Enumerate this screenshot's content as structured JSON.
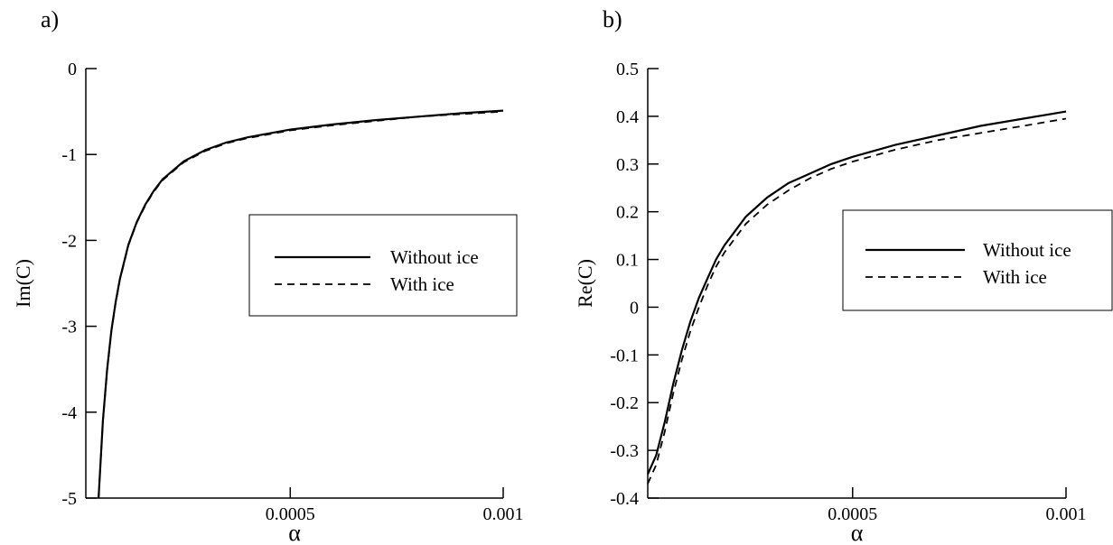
{
  "chart_data": [
    {
      "type": "line",
      "panel_label": "a)",
      "xlabel": "α",
      "ylabel": "Im(C)",
      "xlim": [
        2e-05,
        0.001
      ],
      "ylim": [
        -5,
        0
      ],
      "xticks": [
        0.0005,
        0.001
      ],
      "xtick_labels": [
        "0.0005",
        "0.001"
      ],
      "yticks": [
        0,
        -1,
        -2,
        -3,
        -4,
        -5
      ],
      "ytick_labels": [
        "0",
        "-1",
        "-2",
        "-3",
        "-4",
        "-5"
      ],
      "grid": false,
      "legend_position": "right",
      "series": [
        {
          "name": "Without ice",
          "style": "solid",
          "x": [
            5e-05,
            6e-05,
            7e-05,
            8e-05,
            9e-05,
            0.0001,
            0.00012,
            0.00014,
            0.00016,
            0.00018,
            0.0002,
            0.00025,
            0.0003,
            0.00035,
            0.0004,
            0.0005,
            0.0006,
            0.0007,
            0.0008,
            0.0009,
            0.001
          ],
          "y": [
            -5.0,
            -4.1,
            -3.5,
            -3.05,
            -2.72,
            -2.45,
            -2.05,
            -1.78,
            -1.58,
            -1.42,
            -1.29,
            -1.08,
            -0.95,
            -0.86,
            -0.8,
            -0.71,
            -0.65,
            -0.6,
            -0.56,
            -0.52,
            -0.49
          ]
        },
        {
          "name": "With ice",
          "style": "dashed",
          "x": [
            5e-05,
            6e-05,
            7e-05,
            8e-05,
            9e-05,
            0.0001,
            0.00012,
            0.00014,
            0.00016,
            0.00018,
            0.0002,
            0.00025,
            0.0003,
            0.00035,
            0.0004,
            0.0005,
            0.0006,
            0.0007,
            0.0008,
            0.0009,
            0.001
          ],
          "y": [
            -5.0,
            -4.11,
            -3.51,
            -3.06,
            -2.73,
            -2.46,
            -2.06,
            -1.79,
            -1.59,
            -1.43,
            -1.3,
            -1.09,
            -0.96,
            -0.87,
            -0.81,
            -0.72,
            -0.66,
            -0.61,
            -0.56,
            -0.53,
            -0.5
          ]
        }
      ]
    },
    {
      "type": "line",
      "panel_label": "b)",
      "xlabel": "α",
      "ylabel": "Re(C)",
      "xlim": [
        2e-05,
        0.001
      ],
      "ylim": [
        -0.4,
        0.5
      ],
      "xticks": [
        0.0005,
        0.001
      ],
      "xtick_labels": [
        "0.0005",
        "0.001"
      ],
      "yticks": [
        0.5,
        0.4,
        0.3,
        0.2,
        0.1,
        0,
        -0.1,
        -0.2,
        -0.3,
        -0.4
      ],
      "ytick_labels": [
        "0.5",
        "0.4",
        "0.3",
        "0.2",
        "0.1",
        "0",
        "-0.1",
        "-0.2",
        "-0.3",
        "-0.4"
      ],
      "grid": false,
      "legend_position": "right",
      "series": [
        {
          "name": "Without ice",
          "style": "solid",
          "x": [
            2e-05,
            4e-05,
            6e-05,
            8e-05,
            0.0001,
            0.00012,
            0.00014,
            0.00016,
            0.00018,
            0.0002,
            0.00025,
            0.0003,
            0.00035,
            0.0004,
            0.00045,
            0.0005,
            0.0006,
            0.0007,
            0.0008,
            0.0009,
            0.001
          ],
          "y": [
            -0.35,
            -0.31,
            -0.24,
            -0.16,
            -0.09,
            -0.03,
            0.02,
            0.06,
            0.1,
            0.13,
            0.19,
            0.23,
            0.26,
            0.28,
            0.3,
            0.315,
            0.34,
            0.36,
            0.38,
            0.395,
            0.41
          ]
        },
        {
          "name": "With ice",
          "style": "dashed",
          "x": [
            2e-05,
            4e-05,
            6e-05,
            8e-05,
            0.0001,
            0.00012,
            0.00014,
            0.00016,
            0.00018,
            0.0002,
            0.00025,
            0.0003,
            0.00035,
            0.0004,
            0.00045,
            0.0005,
            0.0006,
            0.0007,
            0.0008,
            0.0009,
            0.001
          ],
          "y": [
            -0.37,
            -0.33,
            -0.26,
            -0.18,
            -0.11,
            -0.05,
            0.0,
            0.045,
            0.085,
            0.115,
            0.175,
            0.215,
            0.245,
            0.27,
            0.29,
            0.305,
            0.33,
            0.35,
            0.365,
            0.38,
            0.395
          ]
        }
      ]
    }
  ]
}
